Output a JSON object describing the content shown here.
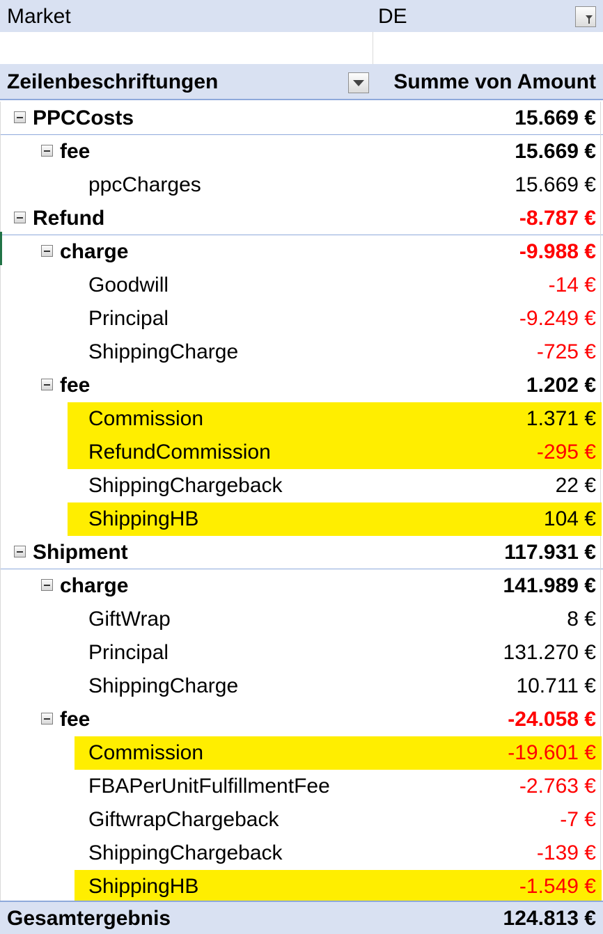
{
  "filter": {
    "label": "Market",
    "value": "DE"
  },
  "header": {
    "rows_label": "Zeilenbeschriftungen",
    "values_label": "Summe von Amount"
  },
  "rows": [
    {
      "level": 0,
      "label": "PPCCosts",
      "value": "15.669 €",
      "bold": true,
      "negative": false,
      "highlight": false,
      "expander": true
    },
    {
      "level": 1,
      "label": "fee",
      "value": "15.669 €",
      "bold": true,
      "negative": false,
      "highlight": false,
      "expander": true
    },
    {
      "level": 2,
      "label": "ppcCharges",
      "value": "15.669 €",
      "bold": false,
      "negative": false,
      "highlight": false,
      "expander": false
    },
    {
      "level": 0,
      "label": "Refund",
      "value": "-8.787 €",
      "bold": true,
      "negative": true,
      "highlight": false,
      "expander": true
    },
    {
      "level": 1,
      "label": "charge",
      "value": "-9.988 €",
      "bold": true,
      "negative": true,
      "highlight": false,
      "expander": true
    },
    {
      "level": 2,
      "label": "Goodwill",
      "value": "-14 €",
      "bold": false,
      "negative": true,
      "highlight": false,
      "expander": false
    },
    {
      "level": 2,
      "label": "Principal",
      "value": "-9.249 €",
      "bold": false,
      "negative": true,
      "highlight": false,
      "expander": false
    },
    {
      "level": 2,
      "label": "ShippingCharge",
      "value": "-725 €",
      "bold": false,
      "negative": true,
      "highlight": false,
      "expander": false
    },
    {
      "level": 1,
      "label": "fee",
      "value": "1.202 €",
      "bold": true,
      "negative": false,
      "highlight": false,
      "expander": true
    },
    {
      "level": 2,
      "label": "Commission",
      "value": "1.371 €",
      "bold": false,
      "negative": false,
      "highlight": true,
      "expander": false
    },
    {
      "level": 2,
      "label": "RefundCommission",
      "value": "-295 €",
      "bold": false,
      "negative": true,
      "highlight": true,
      "expander": false
    },
    {
      "level": 2,
      "label": "ShippingChargeback",
      "value": "22 €",
      "bold": false,
      "negative": false,
      "highlight": false,
      "expander": false
    },
    {
      "level": 2,
      "label": "ShippingHB",
      "value": "104 €",
      "bold": false,
      "negative": false,
      "highlight": true,
      "expander": false
    },
    {
      "level": 0,
      "label": "Shipment",
      "value": "117.931 €",
      "bold": true,
      "negative": false,
      "highlight": false,
      "expander": true
    },
    {
      "level": 1,
      "label": "charge",
      "value": "141.989 €",
      "bold": true,
      "negative": false,
      "highlight": false,
      "expander": true
    },
    {
      "level": 2,
      "label": "GiftWrap",
      "value": "8 €",
      "bold": false,
      "negative": false,
      "highlight": false,
      "expander": false
    },
    {
      "level": 2,
      "label": "Principal",
      "value": "131.270 €",
      "bold": false,
      "negative": false,
      "highlight": false,
      "expander": false
    },
    {
      "level": 2,
      "label": "ShippingCharge",
      "value": "10.711 €",
      "bold": false,
      "negative": false,
      "highlight": false,
      "expander": false
    },
    {
      "level": 1,
      "label": "fee",
      "value": "-24.058 €",
      "bold": true,
      "negative": true,
      "highlight": false,
      "expander": true
    },
    {
      "level": 2,
      "label": "Commission",
      "value": "-19.601 €",
      "bold": false,
      "negative": true,
      "highlight": true,
      "expander": false
    },
    {
      "level": 2,
      "label": "FBAPerUnitFulfillmentFee",
      "value": "-2.763 €",
      "bold": false,
      "negative": true,
      "highlight": false,
      "expander": false
    },
    {
      "level": 2,
      "label": "GiftwrapChargeback",
      "value": "-7 €",
      "bold": false,
      "negative": true,
      "highlight": false,
      "expander": false
    },
    {
      "level": 2,
      "label": "ShippingChargeback",
      "value": "-139 €",
      "bold": false,
      "negative": true,
      "highlight": false,
      "expander": false
    },
    {
      "level": 2,
      "label": "ShippingHB",
      "value": "-1.549 €",
      "bold": false,
      "negative": true,
      "highlight": true,
      "expander": false
    }
  ],
  "grand_total": {
    "label": "Gesamtergebnis",
    "value": "124.813 €"
  },
  "colors": {
    "header_bg": "#d9e1f2",
    "highlight": "#ffee00",
    "negative": "#ff0000",
    "border": "#8ea9db"
  }
}
